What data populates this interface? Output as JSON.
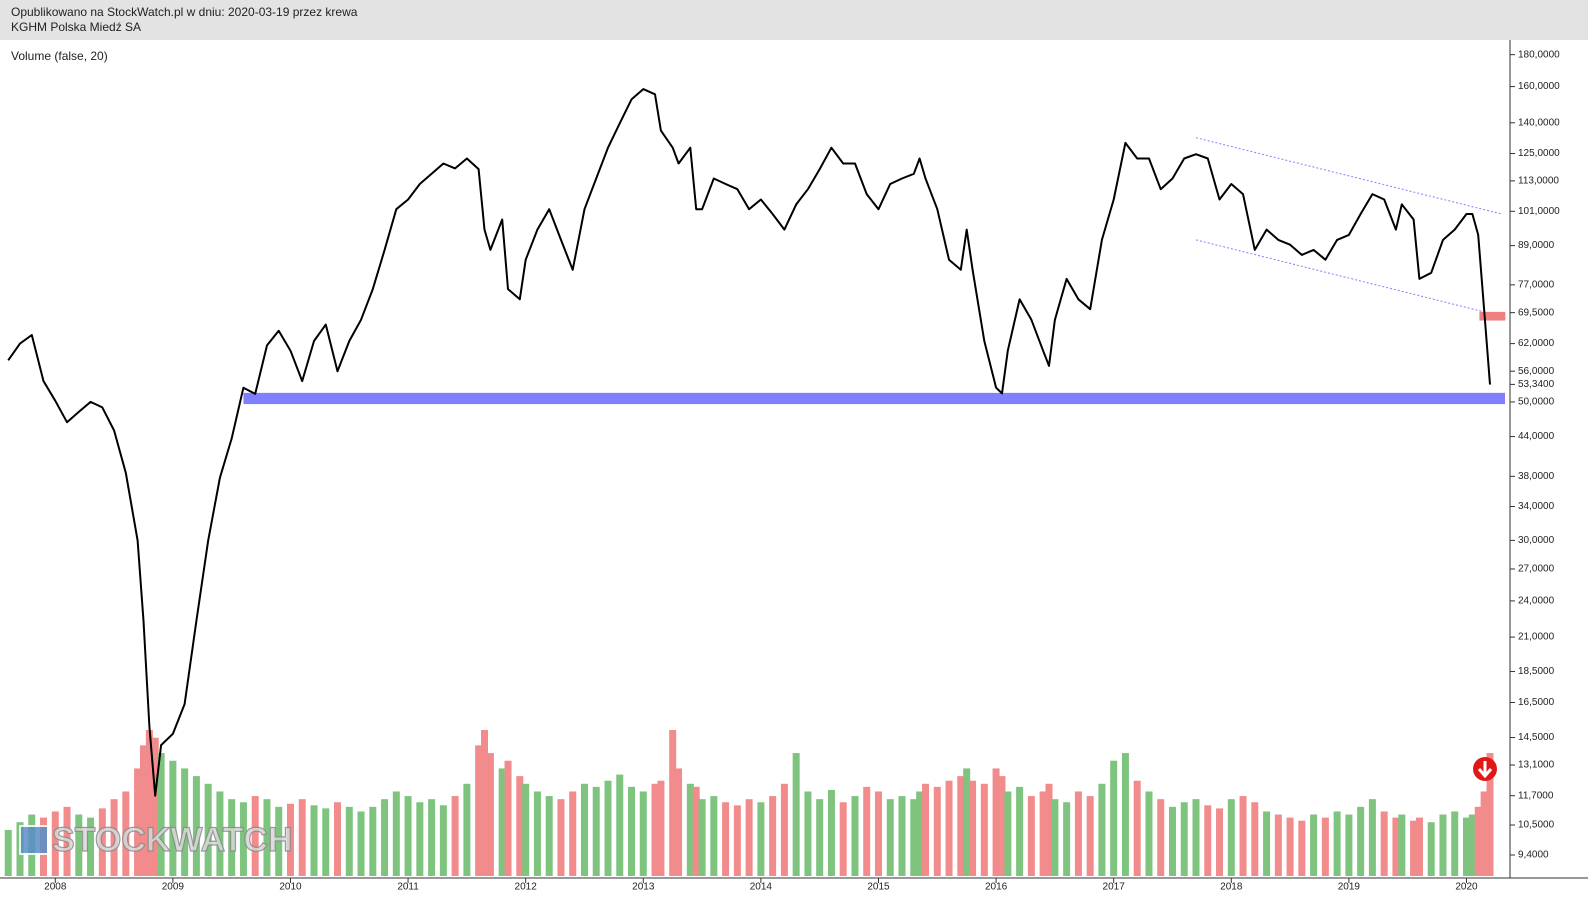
{
  "chart_data": {
    "type": "line",
    "source_note": "Opublikowano na StockWatch.pl w dniu: 2020-03-19 przez krewa",
    "title": "KGHM Polska Miedź SA",
    "indicator_label": "Volume (false, 20)",
    "watermark": "STOCKWATCH",
    "yscale": "log",
    "grid": false,
    "color": "#000000",
    "volume_colors": {
      "up": "#7ec47e",
      "down": "#f28b8b"
    },
    "xlim": [
      2007.53,
      2020.37
    ],
    "xticks": [
      2008,
      2009,
      2010,
      2011,
      2012,
      2013,
      2014,
      2015,
      2016,
      2017,
      2018,
      2019,
      2020
    ],
    "ylim": [
      8.7,
      190
    ],
    "yticks": [
      {
        "value": 180,
        "label": "180,0000"
      },
      {
        "value": 160,
        "label": "160,0000"
      },
      {
        "value": 140,
        "label": "140,0000"
      },
      {
        "value": 125,
        "label": "125,0000"
      },
      {
        "value": 113,
        "label": "113,0000"
      },
      {
        "value": 101,
        "label": "101,0000"
      },
      {
        "value": 89,
        "label": "89,0000"
      },
      {
        "value": 77,
        "label": "77,0000"
      },
      {
        "value": 69.5,
        "label": "69,5000"
      },
      {
        "value": 62,
        "label": "62,0000"
      },
      {
        "value": 56,
        "label": "56,0000"
      },
      {
        "value": 53.34,
        "label": "53,3400"
      },
      {
        "value": 50,
        "label": "50,0000"
      },
      {
        "value": 44,
        "label": "44,0000"
      },
      {
        "value": 38,
        "label": "38,0000"
      },
      {
        "value": 34,
        "label": "34,0000"
      },
      {
        "value": 30,
        "label": "30,0000"
      },
      {
        "value": 27,
        "label": "27,0000"
      },
      {
        "value": 24,
        "label": "24,0000"
      },
      {
        "value": 21,
        "label": "21,0000"
      },
      {
        "value": 18.5,
        "label": "18,5000"
      },
      {
        "value": 16.5,
        "label": "16,5000"
      },
      {
        "value": 14.5,
        "label": "14,5000"
      },
      {
        "value": 13.1,
        "label": "13,1000"
      },
      {
        "value": 11.7,
        "label": "11,7000"
      },
      {
        "value": 10.5,
        "label": "10,5000"
      },
      {
        "value": 9.4,
        "label": "9,4000"
      }
    ],
    "x": [
      2007.6,
      2007.7,
      2007.8,
      2007.9,
      2008.0,
      2008.1,
      2008.2,
      2008.3,
      2008.4,
      2008.5,
      2008.6,
      2008.7,
      2008.75,
      2008.8,
      2008.85,
      2008.9,
      2009.0,
      2009.1,
      2009.2,
      2009.3,
      2009.4,
      2009.5,
      2009.6,
      2009.7,
      2009.8,
      2009.9,
      2010.0,
      2010.1,
      2010.2,
      2010.3,
      2010.4,
      2010.5,
      2010.6,
      2010.7,
      2010.8,
      2010.9,
      2011.0,
      2011.1,
      2011.2,
      2011.3,
      2011.4,
      2011.5,
      2011.6,
      2011.65,
      2011.7,
      2011.8,
      2011.85,
      2011.95,
      2012.0,
      2012.1,
      2012.2,
      2012.3,
      2012.4,
      2012.5,
      2012.6,
      2012.7,
      2012.8,
      2012.9,
      2013.0,
      2013.1,
      2013.15,
      2013.25,
      2013.3,
      2013.4,
      2013.45,
      2013.5,
      2013.6,
      2013.7,
      2013.8,
      2013.9,
      2014.0,
      2014.1,
      2014.2,
      2014.3,
      2014.4,
      2014.5,
      2014.6,
      2014.7,
      2014.8,
      2014.9,
      2015.0,
      2015.1,
      2015.2,
      2015.3,
      2015.35,
      2015.4,
      2015.5,
      2015.6,
      2015.7,
      2015.75,
      2015.8,
      2015.9,
      2016.0,
      2016.05,
      2016.1,
      2016.2,
      2016.3,
      2016.4,
      2016.45,
      2016.5,
      2016.6,
      2016.7,
      2016.8,
      2016.9,
      2017.0,
      2017.1,
      2017.2,
      2017.3,
      2017.4,
      2017.5,
      2017.6,
      2017.7,
      2017.8,
      2017.9,
      2018.0,
      2018.1,
      2018.2,
      2018.3,
      2018.4,
      2018.5,
      2018.6,
      2018.7,
      2018.8,
      2018.9,
      2019.0,
      2019.1,
      2019.2,
      2019.3,
      2019.4,
      2019.45,
      2019.55,
      2019.6,
      2019.7,
      2019.8,
      2019.9,
      2020.0,
      2020.05,
      2020.1,
      2020.15,
      2020.2
    ],
    "values": [
      58.3,
      62,
      64,
      54,
      50.2,
      46.4,
      48.2,
      50,
      49,
      45,
      38.5,
      30,
      22.3,
      15.1,
      11.7,
      14.1,
      14.7,
      16.4,
      22.3,
      30,
      37.8,
      43.7,
      52.7,
      51.5,
      61.6,
      65,
      60.4,
      54,
      62.6,
      66.5,
      56,
      62.6,
      67.7,
      75.8,
      87.6,
      101.8,
      105.5,
      111.7,
      116,
      120.5,
      118.3,
      122.7,
      118,
      94.4,
      87.6,
      98,
      75.8,
      73,
      84.5,
      94.4,
      101.8,
      90.9,
      81.4,
      101.8,
      114,
      127.7,
      139.8,
      152.6,
      158.5,
      155.5,
      136,
      127.7,
      120.5,
      127.7,
      101.8,
      101.8,
      114,
      111.7,
      109.6,
      101.8,
      105.5,
      100,
      94.4,
      103.6,
      109.6,
      118,
      127.7,
      120.5,
      120.5,
      107.6,
      101.8,
      111.7,
      114,
      116,
      122.7,
      114,
      101.8,
      84.5,
      81.4,
      94.4,
      81.4,
      62.6,
      52.7,
      51.6,
      60.4,
      73,
      67.7,
      60.4,
      57.1,
      67.7,
      78.7,
      73,
      70.4,
      90.9,
      105.5,
      130,
      122.7,
      122.7,
      109.6,
      114,
      122.7,
      124.7,
      122.7,
      105.5,
      111.7,
      107.6,
      87.6,
      94.4,
      90.9,
      89.3,
      86,
      87.6,
      84.5,
      90.9,
      92.6,
      100,
      107.6,
      105.5,
      94.4,
      103.6,
      98,
      78.7,
      80.5,
      90.9,
      94.4,
      100,
      100,
      92.6,
      70.4,
      53.3
    ],
    "volume": [
      30,
      35,
      40,
      38,
      42,
      45,
      40,
      38,
      44,
      50,
      55,
      70,
      85,
      95,
      90,
      80,
      75,
      70,
      65,
      60,
      55,
      50,
      48,
      52,
      50,
      45,
      47,
      50,
      46,
      44,
      48,
      45,
      42,
      45,
      50,
      55,
      52,
      48,
      50,
      46,
      52,
      60,
      85,
      95,
      80,
      70,
      75,
      65,
      60,
      55,
      52,
      50,
      55,
      60,
      58,
      62,
      66,
      58,
      55,
      60,
      62,
      95,
      70,
      60,
      58,
      50,
      52,
      48,
      46,
      50,
      48,
      52,
      60,
      80,
      55,
      50,
      56,
      48,
      52,
      58,
      55,
      50,
      52,
      50,
      55,
      60,
      58,
      62,
      65,
      70,
      62,
      60,
      70,
      65,
      55,
      58,
      52,
      55,
      60,
      50,
      48,
      55,
      52,
      60,
      75,
      80,
      62,
      55,
      50,
      45,
      48,
      50,
      46,
      44,
      50,
      52,
      48,
      42,
      40,
      38,
      36,
      40,
      38,
      42,
      40,
      45,
      50,
      42,
      38,
      40,
      36,
      38,
      35,
      40,
      42,
      38,
      40,
      45,
      55,
      80
    ],
    "support_zone": {
      "x_start": 2009.6,
      "y_range": [
        49.6,
        51.7
      ],
      "color": "#8080ff"
    },
    "channel": {
      "color": "#8080ff",
      "lines": [
        [
          [
            2017.7,
            132.5
          ],
          [
            2020.3,
            100
          ]
        ],
        [
          [
            2017.7,
            90.9
          ],
          [
            2020.15,
            69.7
          ]
        ]
      ]
    },
    "marker": {
      "x_range": [
        2020.11,
        2020.33
      ],
      "y_range": [
        67.5,
        69.7
      ],
      "color": "#f08080"
    }
  }
}
